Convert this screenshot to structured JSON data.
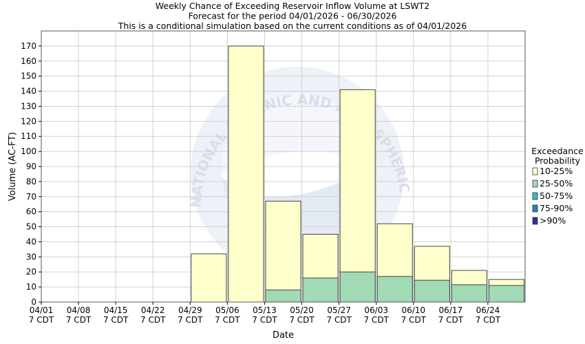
{
  "chart_data": {
    "type": "bar",
    "title": [
      "Weekly Chance of Exceeding Reservoir Inflow Volume at LSWT2",
      "Forecast for the period 04/01/2026 - 06/30/2026",
      "This is a conditional simulation based on the current conditions as of 04/01/2026"
    ],
    "xlabel": "Date",
    "ylabel": "Volume (AC-FT)",
    "ylim": [
      0,
      180
    ],
    "yticks": [
      0,
      10,
      20,
      30,
      40,
      50,
      60,
      70,
      80,
      90,
      100,
      110,
      120,
      130,
      140,
      150,
      160,
      170
    ],
    "xticks": [
      [
        "04/01",
        "7 CDT"
      ],
      [
        "04/08",
        "7 CDT"
      ],
      [
        "04/15",
        "7 CDT"
      ],
      [
        "04/22",
        "7 CDT"
      ],
      [
        "04/29",
        "7 CDT"
      ],
      [
        "05/06",
        "7 CDT"
      ],
      [
        "05/13",
        "7 CDT"
      ],
      [
        "05/20",
        "7 CDT"
      ],
      [
        "05/27",
        "7 CDT"
      ],
      [
        "06/03",
        "7 CDT"
      ],
      [
        "06/10",
        "7 CDT"
      ],
      [
        "06/17",
        "7 CDT"
      ],
      [
        "06/24",
        "7 CDT"
      ]
    ],
    "grid": true,
    "legend_position": "right",
    "legend_title": [
      "Exceedance",
      "Probability"
    ],
    "bars_start_week": 4,
    "series": [
      {
        "name": "10-25%",
        "color": "#ffffcc",
        "values": [
          32,
          170,
          67,
          45,
          141,
          52,
          37,
          21,
          15
        ]
      },
      {
        "name": "25-50%",
        "color": "#a1dab4",
        "values": [
          0,
          0,
          8,
          16,
          20,
          17,
          14.5,
          11.5,
          11
        ]
      },
      {
        "name": "50-75%",
        "color": "#41b6c4",
        "values": []
      },
      {
        "name": "75-90%",
        "color": "#2c7fb8",
        "values": []
      },
      {
        "name": ">90%",
        "color": "#253494",
        "values": []
      }
    ],
    "watermark_text": "NATIONAL OCEANIC AND ATMOSPHERIC ADMINISTRATION"
  }
}
